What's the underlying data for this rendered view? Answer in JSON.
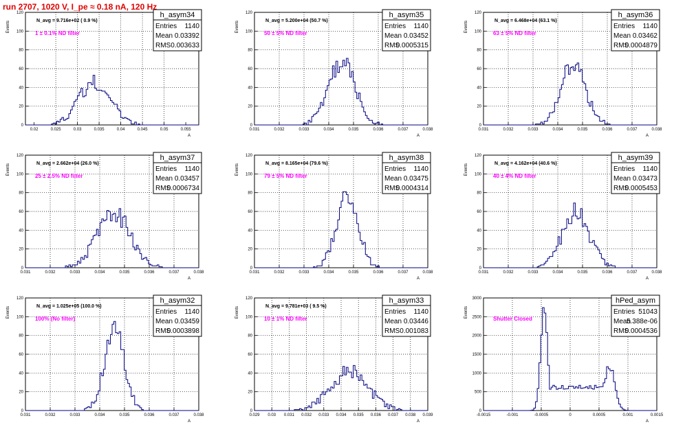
{
  "page_title": "run 2707,  1020 V, I_pe ≈ 0.18 nA, 120 Hz",
  "colors": {
    "title": "#e00000",
    "histogram": "#00007f",
    "annotation": "#ff00ff"
  },
  "chart_data": [
    {
      "type": "bar",
      "name": "h_asym34",
      "stats": {
        "entries_label": "Entries",
        "entries": "1140",
        "mean_label": "Mean",
        "mean": "0.03392",
        "rms_label": "RMS",
        "rms": "0.003633"
      },
      "navg": "N_avg = 9.716e+02 ( 0.9 %)",
      "filter": "1 ± 0.1% ND filter",
      "ylabel": "Events",
      "xlabel": "A",
      "xlim": [
        0.018,
        0.058
      ],
      "ylim": [
        0,
        120
      ],
      "xticks": [
        "0.02",
        "0.025",
        "0.03",
        "0.035",
        "0.04",
        "0.045",
        "0.05",
        "0.055"
      ],
      "xtick_values": [
        0.02,
        0.025,
        0.03,
        0.035,
        0.04,
        0.045,
        0.05,
        0.055
      ],
      "yticks": [
        "0",
        "20",
        "40",
        "60",
        "80",
        "100",
        "120"
      ],
      "mean_value": 0.03392,
      "rms_value": 0.003633,
      "peak": 45,
      "grid": true
    },
    {
      "type": "bar",
      "name": "h_asym35",
      "stats": {
        "entries_label": "Entries",
        "entries": "1140",
        "mean_label": "Mean",
        "mean": "0.03452",
        "rms_label": "RMS",
        "rms": "0.0005315"
      },
      "navg": "N_avg = 5.200e+04 (50.7 %)",
      "filter": "50 ± 5% ND filter",
      "ylabel": "Events",
      "xlabel": "A",
      "xlim": [
        0.031,
        0.038
      ],
      "ylim": [
        0,
        120
      ],
      "xticks": [
        "0.031",
        "0.032",
        "0.033",
        "0.034",
        "0.035",
        "0.036",
        "0.037",
        "0.038"
      ],
      "xtick_values": [
        0.031,
        0.032,
        0.033,
        0.034,
        0.035,
        0.036,
        0.037,
        0.038
      ],
      "yticks": [
        "0",
        "20",
        "40",
        "60",
        "80",
        "100",
        "120"
      ],
      "mean_value": 0.03452,
      "rms_value": 0.0005315,
      "peak": 68,
      "grid": true
    },
    {
      "type": "bar",
      "name": "h_asym36",
      "stats": {
        "entries_label": "Entries",
        "entries": "1140",
        "mean_label": "Mean",
        "mean": "0.03462",
        "rms_label": "RMS",
        "rms": "0.0004879"
      },
      "navg": "N_avg = 6.468e+04 (63.1 %)",
      "filter": "63 ± 5% ND filter",
      "ylabel": "Events",
      "xlabel": "A",
      "xlim": [
        0.031,
        0.038
      ],
      "ylim": [
        0,
        120
      ],
      "xticks": [
        "0.031",
        "0.032",
        "0.033",
        "0.034",
        "0.035",
        "0.036",
        "0.037",
        "0.038"
      ],
      "xtick_values": [
        0.031,
        0.032,
        0.033,
        0.034,
        0.035,
        0.036,
        0.037,
        0.038
      ],
      "yticks": [
        "0",
        "20",
        "40",
        "60",
        "80",
        "100",
        "120"
      ],
      "mean_value": 0.03462,
      "rms_value": 0.0004879,
      "peak": 66,
      "grid": true
    },
    {
      "type": "bar",
      "name": "h_asym37",
      "stats": {
        "entries_label": "Entries",
        "entries": "1140",
        "mean_label": "Mean",
        "mean": "0.03457",
        "rms_label": "RMS",
        "rms": "0.0006734"
      },
      "navg": "N_avg = 2.662e+04 (26.0 %)",
      "filter": "25 ± 2.5% ND filter",
      "ylabel": "Events",
      "xlabel": "A",
      "xlim": [
        0.031,
        0.038
      ],
      "ylim": [
        0,
        120
      ],
      "xticks": [
        "0.031",
        "0.032",
        "0.033",
        "0.034",
        "0.035",
        "0.036",
        "0.037",
        "0.038"
      ],
      "xtick_values": [
        0.031,
        0.032,
        0.033,
        0.034,
        0.035,
        0.036,
        0.037,
        0.038
      ],
      "yticks": [
        "0",
        "20",
        "40",
        "60",
        "80",
        "100",
        "120"
      ],
      "mean_value": 0.03457,
      "rms_value": 0.0006734,
      "peak": 58,
      "grid": true
    },
    {
      "type": "bar",
      "name": "h_asym38",
      "stats": {
        "entries_label": "Entries",
        "entries": "1140",
        "mean_label": "Mean",
        "mean": "0.03475",
        "rms_label": "RMS",
        "rms": "0.0004314"
      },
      "navg": "N_avg = 8.165e+04 (79.6 %)",
      "filter": "79 ± 5% ND filter",
      "ylabel": "Events",
      "xlabel": "A",
      "xlim": [
        0.031,
        0.038
      ],
      "ylim": [
        0,
        120
      ],
      "xticks": [
        "0.031",
        "0.032",
        "0.033",
        "0.034",
        "0.035",
        "0.036",
        "0.037",
        "0.038"
      ],
      "xtick_values": [
        0.031,
        0.032,
        0.033,
        0.034,
        0.035,
        0.036,
        0.037,
        0.038
      ],
      "yticks": [
        "0",
        "20",
        "40",
        "60",
        "80",
        "100",
        "120"
      ],
      "mean_value": 0.03475,
      "rms_value": 0.0004314,
      "peak": 78,
      "grid": true
    },
    {
      "type": "bar",
      "name": "h_asym39",
      "stats": {
        "entries_label": "Entries",
        "entries": "1140",
        "mean_label": "Mean",
        "mean": "0.03473",
        "rms_label": "RMS",
        "rms": "0.0005453"
      },
      "navg": "N_avg = 4.162e+04 (40.6 %)",
      "filter": "40 ± 4% ND filter",
      "ylabel": "Events",
      "xlabel": "A",
      "xlim": [
        0.031,
        0.038
      ],
      "ylim": [
        0,
        120
      ],
      "xticks": [
        "0.031",
        "0.032",
        "0.033",
        "0.034",
        "0.035",
        "0.036",
        "0.037",
        "0.038"
      ],
      "xtick_values": [
        0.031,
        0.032,
        0.033,
        0.034,
        0.035,
        0.036,
        0.037,
        0.038
      ],
      "yticks": [
        "0",
        "20",
        "40",
        "60",
        "80",
        "100",
        "120"
      ],
      "mean_value": 0.03473,
      "rms_value": 0.0005453,
      "peak": 60,
      "grid": true
    },
    {
      "type": "bar",
      "name": "h_asym32",
      "stats": {
        "entries_label": "Entries",
        "entries": "1140",
        "mean_label": "Mean",
        "mean": "0.03459",
        "rms_label": "RMS",
        "rms": "0.0003898"
      },
      "navg": "N_avg = 1.025e+05 (100.0 %)",
      "filter": "100% (No filter)",
      "ylabel": "Events",
      "xlabel": "A",
      "xlim": [
        0.031,
        0.038
      ],
      "ylim": [
        0,
        120
      ],
      "xticks": [
        "0.031",
        "0.032",
        "0.033",
        "0.034",
        "0.035",
        "0.036",
        "0.037",
        "0.038"
      ],
      "xtick_values": [
        0.031,
        0.032,
        0.033,
        0.034,
        0.035,
        0.036,
        0.037,
        0.038
      ],
      "yticks": [
        "0",
        "20",
        "40",
        "60",
        "80",
        "100",
        "120"
      ],
      "mean_value": 0.03459,
      "rms_value": 0.0003898,
      "peak": 88,
      "grid": true
    },
    {
      "type": "bar",
      "name": "h_asym33",
      "stats": {
        "entries_label": "Entries",
        "entries": "1140",
        "mean_label": "Mean",
        "mean": "0.03446",
        "rms_label": "RMS",
        "rms": "0.001083"
      },
      "navg": "N_avg = 9.781e+03 ( 9.5 %)",
      "filter": "10 ± 1% ND filter",
      "ylabel": "Events",
      "xlabel": "A",
      "xlim": [
        0.029,
        0.039
      ],
      "ylim": [
        0,
        120
      ],
      "xticks": [
        "0.029",
        "0.03",
        "0.031",
        "0.032",
        "0.033",
        "0.034",
        "0.035",
        "0.036",
        "0.037",
        "0.038",
        "0.039"
      ],
      "xtick_values": [
        0.029,
        0.03,
        0.031,
        0.032,
        0.033,
        0.034,
        0.035,
        0.036,
        0.037,
        0.038,
        0.039
      ],
      "yticks": [
        "0",
        "20",
        "40",
        "60",
        "80",
        "100",
        "120"
      ],
      "mean_value": 0.03446,
      "rms_value": 0.001083,
      "peak": 42,
      "grid": true
    },
    {
      "type": "bar",
      "name": "hPed_asym",
      "stats": {
        "entries_label": "Entries",
        "entries": "51043",
        "mean_label": "Mean",
        "mean": "5.388e-06",
        "rms_label": "RMS",
        "rms": "0.0004536"
      },
      "navg": "",
      "filter": "Shutter Closed",
      "ylabel": "Events",
      "xlabel": "A",
      "xlim": [
        -0.0015,
        0.0015
      ],
      "ylim": [
        0,
        3000
      ],
      "xticks": [
        "-0.0015",
        "-0.001",
        "-0.0005",
        "0",
        "0.0005",
        "0.001",
        "0.0015"
      ],
      "xtick_values": [
        -0.0015,
        -0.001,
        -0.0005,
        0,
        0.0005,
        0.001,
        0.0015
      ],
      "yticks": [
        "0",
        "500",
        "1000",
        "1500",
        "2000",
        "2500",
        "3000"
      ],
      "ped_peaks": [
        {
          "center": -0.00045,
          "sigma": 6e-05,
          "height": 2800
        },
        {
          "center": 0.00068,
          "sigma": 9e-05,
          "height": 1200
        }
      ],
      "valley": 620,
      "grid": true
    }
  ]
}
